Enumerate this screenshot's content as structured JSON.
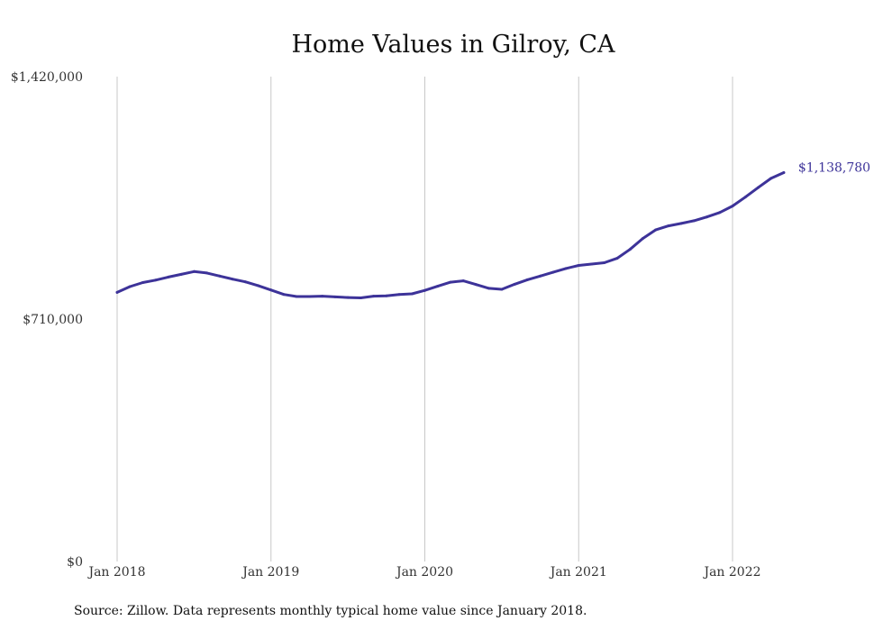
{
  "chart_data": {
    "type": "line",
    "title": "Home Values in Gilroy, CA",
    "source_note": "Source: Zillow. Data represents monthly typical home value since January 2018.",
    "xlabel": "",
    "ylabel": "",
    "ylim": [
      0,
      1420000
    ],
    "y_ticks": [
      0,
      710000,
      1420000
    ],
    "y_tick_labels": [
      "$0",
      "$710,000",
      "$1,420,000"
    ],
    "x_tick_labels": [
      "Jan 2018",
      "Jan 2019",
      "Jan 2020",
      "Jan 2021",
      "Jan 2022"
    ],
    "x_tick_dates": [
      "2018-01",
      "2019-01",
      "2020-01",
      "2021-01",
      "2022-01"
    ],
    "grid": "vertical",
    "legend": "none",
    "line_color": "#3d3399",
    "end_label": "$1,138,780",
    "series": [
      {
        "x": [
          "2018-01",
          "2018-02",
          "2018-03",
          "2018-04",
          "2018-05",
          "2018-06",
          "2018-07",
          "2018-08",
          "2018-09",
          "2018-10",
          "2018-11",
          "2018-12",
          "2019-01",
          "2019-02",
          "2019-03",
          "2019-04",
          "2019-05",
          "2019-06",
          "2019-07",
          "2019-08",
          "2019-09",
          "2019-10",
          "2019-11",
          "2019-12",
          "2020-01",
          "2020-02",
          "2020-03",
          "2020-04",
          "2020-05",
          "2020-06",
          "2020-07",
          "2020-08",
          "2020-09",
          "2020-10",
          "2020-11",
          "2020-12",
          "2021-01",
          "2021-02",
          "2021-03",
          "2021-04",
          "2021-05",
          "2021-06",
          "2021-07",
          "2021-08",
          "2021-09",
          "2021-10",
          "2021-11",
          "2021-12",
          "2022-01",
          "2022-02",
          "2022-03",
          "2022-04",
          "2022-05"
        ],
        "values": [
          788000,
          805000,
          817000,
          824000,
          833000,
          841000,
          849000,
          845000,
          836000,
          827000,
          819000,
          808000,
          795000,
          782000,
          776000,
          776000,
          777000,
          775000,
          773000,
          772000,
          777000,
          778000,
          782000,
          784000,
          794000,
          806000,
          818000,
          822000,
          811000,
          800000,
          797000,
          812000,
          825000,
          836000,
          847000,
          858000,
          867000,
          871000,
          875000,
          888000,
          914000,
          946000,
          971000,
          983000,
          990000,
          998000,
          1009000,
          1022000,
          1041000,
          1067000,
          1095000,
          1122000,
          1138780
        ]
      }
    ]
  }
}
